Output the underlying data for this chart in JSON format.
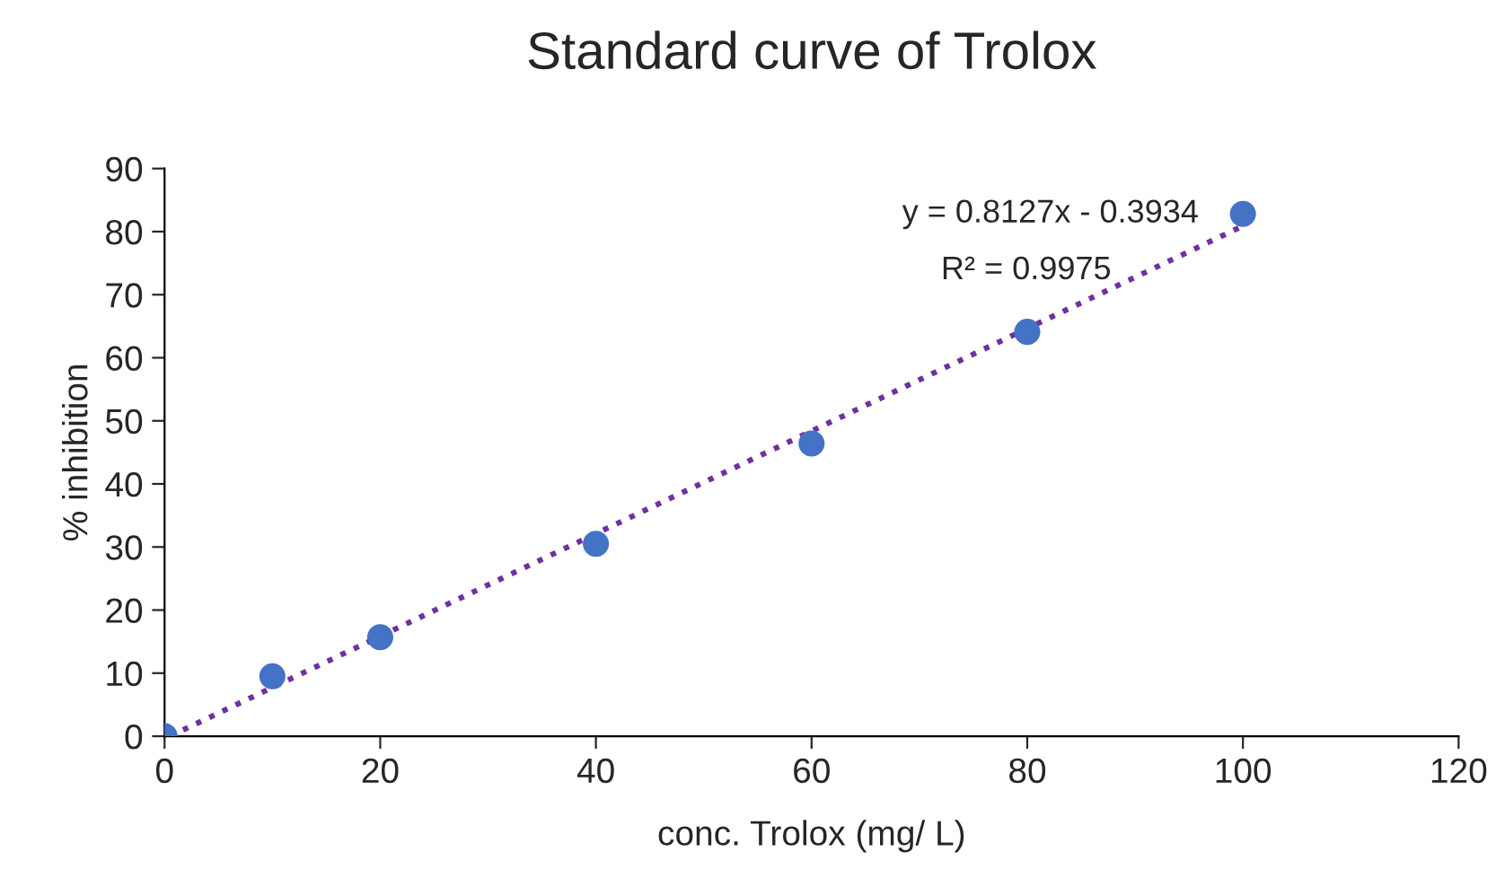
{
  "chart_data": {
    "type": "scatter",
    "title": "Standard curve of Trolox",
    "xlabel": "conc. Trolox (mg/ L)",
    "ylabel": "% inhibition",
    "x": [
      0,
      10,
      20,
      40,
      60,
      80,
      100
    ],
    "series": [
      {
        "color": "#4472c4",
        "values": [
          0,
          9.5,
          15.7,
          30.5,
          46.4,
          64.1,
          82.8
        ],
        "marker": "circle"
      },
      {
        "type": "line",
        "color": "#7030a0",
        "x": [
          0.5,
          100
        ],
        "values": [
          0,
          80.9
        ],
        "line_style": "dotted",
        "marker": "none"
      }
    ],
    "annotations": [
      "y = 0.8127x - 0.3934",
      "R² = 0.9975"
    ],
    "xlim": [
      0,
      120
    ],
    "xticks": [
      0,
      20,
      40,
      60,
      80,
      100,
      120
    ],
    "ylim": [
      0,
      90
    ],
    "yticks": [
      0,
      10,
      20,
      30,
      40,
      50,
      60,
      70,
      80,
      90
    ],
    "grid": false,
    "legend": false
  }
}
